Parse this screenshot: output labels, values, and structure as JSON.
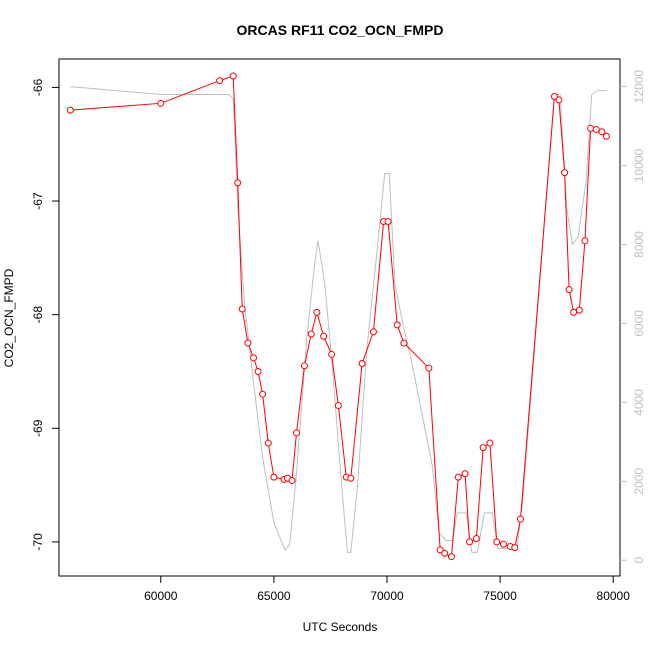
{
  "chart_data": {
    "type": "line",
    "title": "ORCAS RF11 CO2_OCN_FMPD",
    "xlabel": "UTC Seconds",
    "ylabel": "CO2_OCN_FMPD",
    "xlim": [
      55500,
      80300
    ],
    "ylim": [
      -70.3,
      -65.75
    ],
    "y2lim": [
      -400,
      12700
    ],
    "x_ticks": [
      60000,
      65000,
      70000,
      75000,
      80000
    ],
    "y_ticks": [
      -66,
      -67,
      -68,
      -69,
      -70
    ],
    "y2_ticks": [
      0,
      2000,
      4000,
      6000,
      8000,
      10000,
      12000
    ],
    "grid": false,
    "series": [
      {
        "color": "#ff0000",
        "marker": "circle",
        "axis": "left",
        "points": [
          [
            56000,
            -66.2
          ],
          [
            60000,
            -66.14
          ],
          [
            62600,
            -65.94
          ],
          [
            63200,
            -65.9
          ],
          [
            63400,
            -66.84
          ],
          [
            63600,
            -67.95
          ],
          [
            63850,
            -68.25
          ],
          [
            64100,
            -68.38
          ],
          [
            64300,
            -68.5
          ],
          [
            64500,
            -68.7
          ],
          [
            64750,
            -69.13
          ],
          [
            65000,
            -69.43
          ],
          [
            65450,
            -69.45
          ],
          [
            65600,
            -69.44
          ],
          [
            65800,
            -69.46
          ],
          [
            66000,
            -69.04
          ],
          [
            66350,
            -68.45
          ],
          [
            66650,
            -68.17
          ],
          [
            66900,
            -67.98
          ],
          [
            67200,
            -68.19
          ],
          [
            67550,
            -68.35
          ],
          [
            67850,
            -68.8
          ],
          [
            68200,
            -69.43
          ],
          [
            68400,
            -69.44
          ],
          [
            68900,
            -68.43
          ],
          [
            69400,
            -68.15
          ],
          [
            69850,
            -67.18
          ],
          [
            70050,
            -67.18
          ],
          [
            70450,
            -68.09
          ],
          [
            70750,
            -68.25
          ],
          [
            71850,
            -68.47
          ],
          [
            72350,
            -70.07
          ],
          [
            72550,
            -70.1
          ],
          [
            72850,
            -70.13
          ],
          [
            73150,
            -69.43
          ],
          [
            73450,
            -69.4
          ],
          [
            73650,
            -70.0
          ],
          [
            73950,
            -69.97
          ],
          [
            74250,
            -69.17
          ],
          [
            74550,
            -69.13
          ],
          [
            74850,
            -70.0
          ],
          [
            75150,
            -70.02
          ],
          [
            75450,
            -70.04
          ],
          [
            75650,
            -70.05
          ],
          [
            75900,
            -69.8
          ],
          [
            77400,
            -66.08
          ],
          [
            77600,
            -66.11
          ],
          [
            77850,
            -66.75
          ],
          [
            78050,
            -67.78
          ],
          [
            78250,
            -67.98
          ],
          [
            78500,
            -67.96
          ],
          [
            78750,
            -67.35
          ],
          [
            79000,
            -66.36
          ],
          [
            79250,
            -66.37
          ],
          [
            79500,
            -66.39
          ],
          [
            79700,
            -66.43
          ]
        ]
      },
      {
        "color": "#bebebe",
        "marker": "none",
        "axis": "right",
        "points": [
          [
            56000,
            12000
          ],
          [
            60000,
            11800
          ],
          [
            63000,
            11800
          ],
          [
            63200,
            11700
          ],
          [
            63400,
            9000
          ],
          [
            63700,
            6500
          ],
          [
            64100,
            4500
          ],
          [
            64500,
            2600
          ],
          [
            65000,
            950
          ],
          [
            65500,
            250
          ],
          [
            65700,
            400
          ],
          [
            66000,
            2200
          ],
          [
            66450,
            5600
          ],
          [
            66800,
            7500
          ],
          [
            66950,
            8100
          ],
          [
            67250,
            7000
          ],
          [
            67600,
            4800
          ],
          [
            67950,
            2200
          ],
          [
            68250,
            200
          ],
          [
            68400,
            200
          ],
          [
            68700,
            1900
          ],
          [
            69100,
            5300
          ],
          [
            69500,
            7500
          ],
          [
            69900,
            9800
          ],
          [
            70100,
            9800
          ],
          [
            70350,
            7000
          ],
          [
            70700,
            6000
          ],
          [
            71100,
            5000
          ],
          [
            72000,
            2400
          ],
          [
            72300,
            700
          ],
          [
            72600,
            500
          ],
          [
            72900,
            500
          ],
          [
            73100,
            1200
          ],
          [
            73500,
            1200
          ],
          [
            73750,
            200
          ],
          [
            74000,
            200
          ],
          [
            74300,
            1200
          ],
          [
            74650,
            1200
          ],
          [
            74900,
            300
          ],
          [
            75750,
            300
          ],
          [
            76000,
            1500
          ],
          [
            77400,
            11800
          ],
          [
            77650,
            11800
          ],
          [
            77950,
            8900
          ],
          [
            78200,
            8000
          ],
          [
            78450,
            8200
          ],
          [
            78800,
            9600
          ],
          [
            79050,
            11800
          ],
          [
            79300,
            11900
          ],
          [
            79700,
            11900
          ]
        ]
      }
    ]
  }
}
